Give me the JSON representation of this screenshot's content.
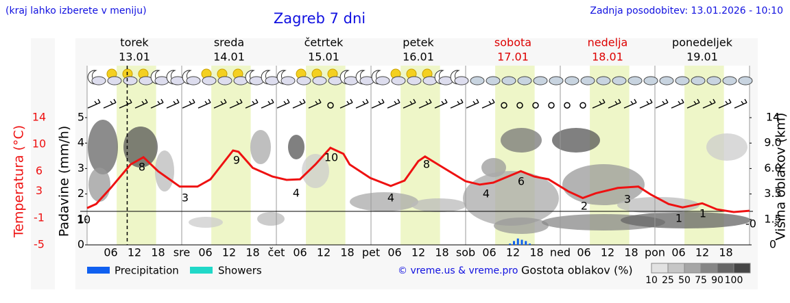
{
  "note": "(kraj lahko izberete v meniju)",
  "title": "Zagreb 7 dni",
  "updated": "Zadnja posodobitev: 13.01.2026 - 10:10",
  "chart_data": {
    "type": "line",
    "days": [
      {
        "name": "torek",
        "date": "13.01",
        "color": "#000000"
      },
      {
        "name": "sreda",
        "date": "14.01",
        "color": "#000000"
      },
      {
        "name": "četrtek",
        "date": "15.01",
        "color": "#000000"
      },
      {
        "name": "petek",
        "date": "16.01",
        "color": "#000000"
      },
      {
        "name": "sobota",
        "date": "17.01",
        "color": "#dd0000"
      },
      {
        "name": "nedelja",
        "date": "18.01",
        "color": "#dd0000"
      },
      {
        "name": "ponedeljek",
        "date": "19.01",
        "color": "#000000"
      }
    ],
    "x_tick_labels": [
      "06",
      "12",
      "18",
      "sre",
      "06",
      "12",
      "18",
      "čet",
      "06",
      "12",
      "18",
      "pet",
      "06",
      "12",
      "18",
      "sob",
      "06",
      "12",
      "18",
      "ned",
      "06",
      "12",
      "18",
      "pon",
      "06",
      "12",
      "18"
    ],
    "xlim": [
      0,
      168
    ],
    "ylabel": "Padavine (mm/h)",
    "ylim": [
      0,
      5
    ],
    "yticks": [
      0,
      1,
      2,
      3,
      4,
      5
    ],
    "temperature_label": "Temperatura (°C)",
    "templim": [
      -5,
      14
    ],
    "tempticks": [
      -5,
      -1,
      3,
      6,
      10,
      14
    ],
    "y2label": "Višina oblakov (km)",
    "y2ticks": [
      0,
      1.5,
      3.5,
      {
        "value": 6,
        "label": "6.0"
      },
      {
        "value": 9,
        "label": "9.0"
      },
      14
    ],
    "temperature": {
      "name": "Temperatura",
      "color": "#ee1111",
      "x": [
        0,
        2.3,
        6,
        11,
        14.3,
        18,
        23.5,
        28,
        31.3,
        37,
        38.4,
        42,
        47,
        50.6,
        54,
        57.9,
        61.7,
        65,
        66.6,
        71.8,
        77,
        80.5,
        84,
        85.7,
        89,
        96,
        99.6,
        103,
        110,
        113.4,
        117,
        122,
        125.7,
        129,
        134.6,
        139.8,
        143,
        147.5,
        151,
        156,
        159.7,
        164,
        168
      ],
      "values": [
        0.5,
        1.1,
        3.5,
        7,
        8.1,
        6,
        3.7,
        3.7,
        4.8,
        9.1,
        8.9,
        6.5,
        5.2,
        4.7,
        4.8,
        7,
        9.5,
        8.6,
        7,
        5,
        3.8,
        4.6,
        7.5,
        8.2,
        7,
        4.5,
        4,
        4.3,
        6,
        5.2,
        4.8,
        3,
        2,
        2.7,
        3.5,
        3.7,
        2.5,
        1.1,
        0.6,
        1.2,
        0.3,
        -0.1,
        0.1
      ]
    },
    "temperature_extremes": [
      "10",
      "8",
      "3",
      "9",
      "4",
      "10",
      "4",
      "8",
      "4",
      "6",
      "2",
      "3",
      "1",
      "1",
      "-0"
    ],
    "precipitation": {
      "name": "Precipitation",
      "color": "#1060f0",
      "x": [
        107,
        108,
        109,
        110,
        111,
        112
      ],
      "values": [
        0.05,
        0.15,
        0.25,
        0.2,
        0.15,
        0.05
      ]
    },
    "showers": {
      "name": "Showers",
      "color": "#20d8c8"
    },
    "credit": "© vreme.us & vreme.pro",
    "cloud_legend": {
      "title": "Gostota oblakov (%)",
      "levels": [
        10,
        25,
        50,
        75,
        90,
        100
      ],
      "colors": [
        "#e2e2e2",
        "#c6c6c6",
        "#a6a6a6",
        "#868686",
        "#666666",
        "#464646"
      ]
    }
  }
}
